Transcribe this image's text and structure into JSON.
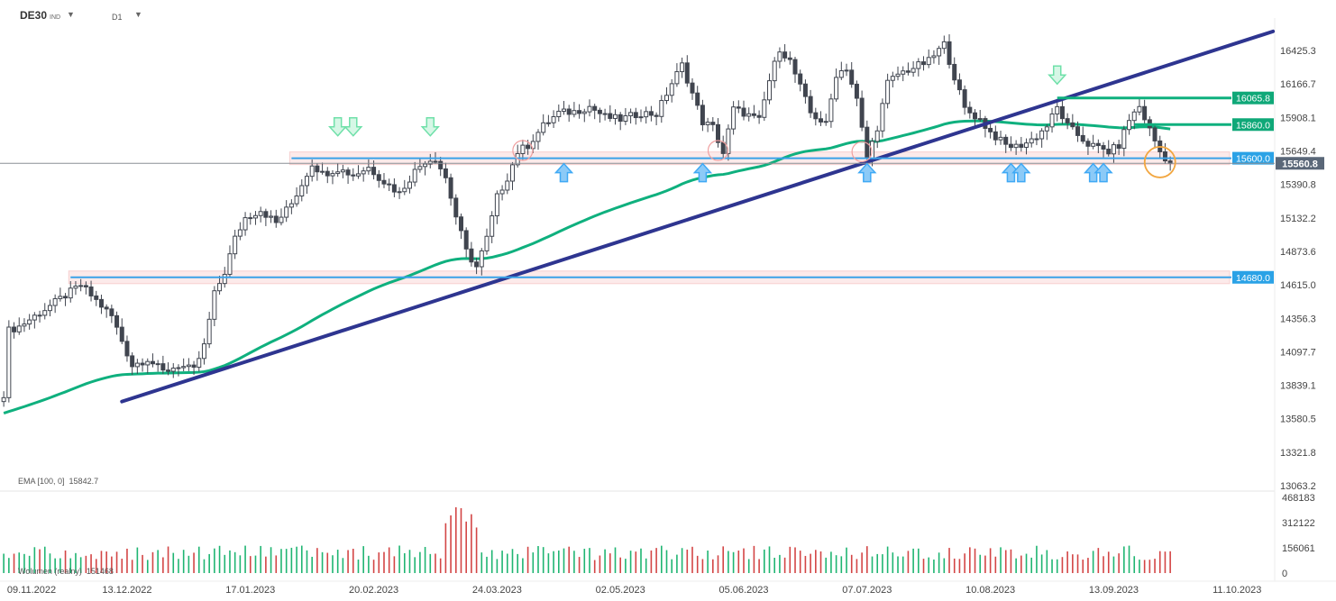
{
  "header": {
    "symbol": "DE30",
    "symbol_type": "IND",
    "timeframe": "D1"
  },
  "indicators": {
    "ema_label": "EMA [100, 0]",
    "ema_value": "15842.7",
    "volume_label": "Wolumen (realny)",
    "volume_value": "151468"
  },
  "colors": {
    "bull": "#40454f",
    "bear": "#40454f",
    "ema": "#0fb07e",
    "trendline": "#2e3590",
    "support_line": "#3aa2e8",
    "zone_fill": "#fbe3e3",
    "green_label": "#0fa878",
    "blue_label": "#2aa2e6",
    "current_price_label": "#5a6778",
    "vol_up": "#1fb572",
    "vol_down": "#d34545",
    "arrow_up": "#3fa9f5",
    "arrow_down": "#6fe0a9"
  },
  "chart_data": {
    "type": "candlestick",
    "title": "DE30",
    "ylim": [
      13063.2,
      16683.4
    ],
    "y_ticks": [
      "16425.3",
      "16166.7",
      "15908.1",
      "15649.4",
      "15390.8",
      "15132.2",
      "14873.6",
      "14615.0",
      "14356.3",
      "14097.7",
      "13839.1",
      "13580.5",
      "13321.8",
      "13063.2"
    ],
    "x_ticks": [
      "09.11.2022",
      "13.12.2022",
      "17.01.2023",
      "20.02.2023",
      "24.03.2023",
      "02.05.2023",
      "05.06.2023",
      "07.07.2023",
      "10.08.2023",
      "13.09.2023",
      "11.10.2023"
    ],
    "x_tick_index": [
      0,
      24,
      48,
      72,
      96,
      120,
      144,
      168,
      192,
      216,
      240
    ],
    "current_price": "15560.8",
    "levels": [
      {
        "value": 16065.8,
        "label": "16065.8",
        "type": "resistance",
        "from_index": 205
      },
      {
        "value": 15860.0,
        "label": "15860.0",
        "type": "resistance",
        "from_index": 220
      },
      {
        "value": 15600.0,
        "label": "15600.0",
        "type": "support",
        "from_index": 56
      },
      {
        "value": 14680.0,
        "label": "14680.0",
        "type": "support",
        "from_index": 13
      }
    ],
    "trendline": {
      "start_index": 23,
      "start_value": 13720,
      "end_index": 247,
      "end_value": 16580
    },
    "ema_period": 100,
    "close_anchors": [
      [
        0,
        13780
      ],
      [
        1,
        14270
      ],
      [
        3,
        14300
      ],
      [
        6,
        14380
      ],
      [
        9,
        14460
      ],
      [
        12,
        14540
      ],
      [
        15,
        14620
      ],
      [
        18,
        14500
      ],
      [
        21,
        14380
      ],
      [
        25,
        14000
      ],
      [
        28,
        14050
      ],
      [
        31,
        13950
      ],
      [
        34,
        14000
      ],
      [
        37,
        13960
      ],
      [
        39,
        14150
      ],
      [
        41,
        14550
      ],
      [
        43,
        14720
      ],
      [
        45,
        14980
      ],
      [
        47,
        15140
      ],
      [
        50,
        15200
      ],
      [
        53,
        15100
      ],
      [
        56,
        15250
      ],
      [
        58,
        15400
      ],
      [
        60,
        15560
      ],
      [
        62,
        15480
      ],
      [
        65,
        15520
      ],
      [
        68,
        15470
      ],
      [
        71,
        15530
      ],
      [
        74,
        15420
      ],
      [
        77,
        15330
      ],
      [
        80,
        15500
      ],
      [
        82,
        15580
      ],
      [
        84,
        15600
      ],
      [
        86,
        15450
      ],
      [
        88,
        15150
      ],
      [
        90,
        14880
      ],
      [
        92,
        14760
      ],
      [
        94,
        14980
      ],
      [
        96,
        15300
      ],
      [
        98,
        15450
      ],
      [
        100,
        15650
      ],
      [
        102,
        15700
      ],
      [
        105,
        15850
      ],
      [
        108,
        15950
      ],
      [
        111,
        15960
      ],
      [
        114,
        16000
      ],
      [
        117,
        15920
      ],
      [
        120,
        15900
      ],
      [
        124,
        15950
      ],
      [
        127,
        15940
      ],
      [
        130,
        16180
      ],
      [
        132,
        16320
      ],
      [
        134,
        16100
      ],
      [
        136,
        15880
      ],
      [
        138,
        15840
      ],
      [
        140,
        15640
      ],
      [
        142,
        15980
      ],
      [
        144,
        15950
      ],
      [
        147,
        15890
      ],
      [
        149,
        16200
      ],
      [
        151,
        16450
      ],
      [
        153,
        16350
      ],
      [
        155,
        16150
      ],
      [
        157,
        15950
      ],
      [
        160,
        15860
      ],
      [
        162,
        16250
      ],
      [
        164,
        16300
      ],
      [
        166,
        16050
      ],
      [
        168,
        15600
      ],
      [
        170,
        15840
      ],
      [
        172,
        16180
      ],
      [
        174,
        16250
      ],
      [
        177,
        16300
      ],
      [
        180,
        16350
      ],
      [
        183,
        16480
      ],
      [
        185,
        16230
      ],
      [
        187,
        15980
      ],
      [
        190,
        15900
      ],
      [
        192,
        15800
      ],
      [
        195,
        15700
      ],
      [
        197,
        15690
      ],
      [
        199,
        15720
      ],
      [
        201,
        15770
      ],
      [
        203,
        15850
      ],
      [
        205,
        15990
      ],
      [
        207,
        15850
      ],
      [
        209,
        15780
      ],
      [
        211,
        15710
      ],
      [
        213,
        15680
      ],
      [
        215,
        15650
      ],
      [
        217,
        15700
      ],
      [
        219,
        15900
      ],
      [
        221,
        16000
      ],
      [
        223,
        15820
      ],
      [
        225,
        15650
      ],
      [
        227,
        15560
      ]
    ],
    "volume": {
      "ylim": [
        0,
        468183
      ],
      "y_ticks": [
        "468183",
        "312122",
        "156061",
        "0"
      ]
    }
  }
}
